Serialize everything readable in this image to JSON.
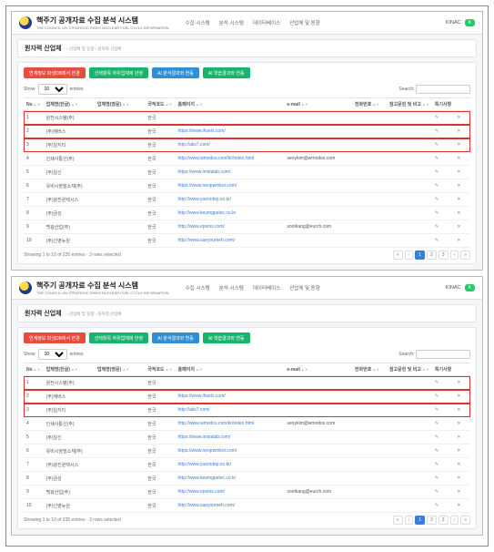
{
  "brand": {
    "title": "핵주기 공개자료 수집 분석 시스템",
    "subtitle": "THE COUNCIL ON STRATEGIC RISKS NUCLEAR FUEL CYCLE INFORMATION"
  },
  "nav": {
    "i0": "수집·시스템",
    "i1": "분석·시스템",
    "i2": "데이터베이스",
    "i3": "산업체 및 동향"
  },
  "user": {
    "name": "KINAC",
    "badge": "K"
  },
  "page": {
    "title": "원자력 산업체",
    "crumb": "› 산업체 및 동향 › 원자력 산업체"
  },
  "buttons": {
    "b0": {
      "label": "연계정보 파생DB에서 변경",
      "color": "#e74c3c"
    },
    "b1": {
      "label": "선택항목 하위업체에 반영",
      "color": "#19b36b"
    },
    "b2": {
      "label": "AI 분석결과와 연동",
      "color": "#2f8fd6"
    },
    "b3": {
      "label": "AI 학습결과와 연동",
      "color": "#19b36b"
    }
  },
  "tablectrl": {
    "show": "Show",
    "entries": "entries",
    "pagesize": "10",
    "searchlbl": "Search:",
    "searchval": ""
  },
  "cols": {
    "no": "No",
    "n1": "업체명(한글)",
    "n2": "업체명(영문)",
    "nat": "국적코드",
    "hp": "홈페이지",
    "em": "e-mail",
    "ph": "전화번호",
    "ref": "참고문헌 및 비고",
    "a1": "특기사항",
    "a2": ""
  },
  "rows": [
    {
      "no": "1",
      "n1": "원전시스템(주)",
      "n2": "",
      "nat": "한국",
      "hp": "",
      "em": "",
      "ph": "",
      "ref": ""
    },
    {
      "no": "2",
      "n1": "(주)에버스",
      "n2": "",
      "nat": "한국",
      "hp": "https://www.ihuels.com/",
      "em": "",
      "ph": "",
      "ref": ""
    },
    {
      "no": "3",
      "n1": "(주)일지티",
      "n2": "",
      "nat": "한국",
      "hp": "http://aks7.com/",
      "em": "",
      "ph": "",
      "ref": ""
    },
    {
      "no": "4",
      "n1": "인쇄사통신(주)",
      "n2": "",
      "nat": "한국",
      "hp": "http://www.wmodos.com/kr/index.html",
      "em": "seoykim@wmodos.com",
      "ph": "",
      "ref": ""
    },
    {
      "no": "5",
      "n1": "(주)일신",
      "n2": "",
      "nat": "한국",
      "hp": "https://www.imstalab.com/",
      "em": "",
      "ph": "",
      "ref": ""
    },
    {
      "no": "6",
      "n1": "유비시정밀소재(주)",
      "n2": "",
      "nat": "한국",
      "hp": "https://www.neopwmkor.com/",
      "em": "",
      "ph": "",
      "ref": ""
    },
    {
      "no": "7",
      "n1": "(주)광진윈텍시스",
      "n2": "",
      "nat": "한국",
      "hp": "http://www.yuenntep.co.kr/",
      "em": "",
      "ph": "",
      "ref": ""
    },
    {
      "no": "8",
      "n1": "(주)금성",
      "n2": "",
      "nat": "한국",
      "hp": "http://www.keumgpelec.co.kr",
      "em": "",
      "ph": "",
      "ref": ""
    },
    {
      "no": "9",
      "n1": "백광산업(주)",
      "n2": "",
      "nat": "한국",
      "hp": "http://www.eponis.com/",
      "em": "sootkang@eurch.com",
      "ph": "",
      "ref": ""
    },
    {
      "no": "10",
      "n1": "(주)신영뉴원",
      "n2": "",
      "nat": "한국",
      "hp": "http://www.saeyoumeh.com/",
      "em": "",
      "ph": "",
      "ref": ""
    }
  ],
  "act": {
    "edit": "✎",
    "del": "✕"
  },
  "footer": {
    "info": "Showing 1 to 10 of 235 entries · 3 rows selected",
    "first": "«",
    "prev": "‹",
    "p1": "1",
    "p2": "2",
    "p3": "3",
    "next": "›",
    "last": "»"
  },
  "highlight": {
    "start": 0,
    "end": 2
  }
}
